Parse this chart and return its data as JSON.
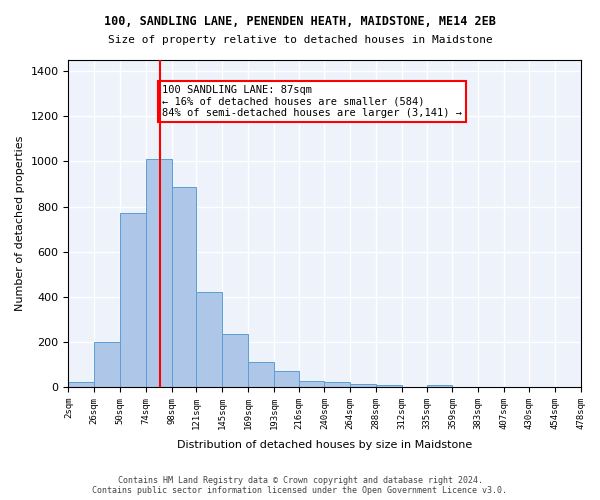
{
  "title": "100, SANDLING LANE, PENENDEN HEATH, MAIDSTONE, ME14 2EB",
  "subtitle": "Size of property relative to detached houses in Maidstone",
  "xlabel": "Distribution of detached houses by size in Maidstone",
  "ylabel": "Number of detached properties",
  "bar_color": "#aec6e8",
  "bar_edge_color": "#5a9fd4",
  "background_color": "#eef2fb",
  "grid_color": "#ffffff",
  "annotation_text": "100 SANDLING LANE: 87sqm\n← 16% of detached houses are smaller (584)\n84% of semi-detached houses are larger (3,141) →",
  "annotation_color": "red",
  "vline_x": 87,
  "vline_color": "red",
  "bin_edges": [
    2,
    26,
    50,
    74,
    98,
    121,
    145,
    169,
    193,
    216,
    240,
    264,
    288,
    312,
    335,
    359,
    383,
    407,
    430,
    454,
    478
  ],
  "bin_heights": [
    20,
    200,
    770,
    1010,
    885,
    420,
    235,
    110,
    70,
    25,
    22,
    15,
    8,
    0,
    10,
    0,
    0,
    0,
    0,
    0
  ],
  "ylim": [
    0,
    1450
  ],
  "yticks": [
    0,
    200,
    400,
    600,
    800,
    1000,
    1200,
    1400
  ],
  "footer_text": "Contains HM Land Registry data © Crown copyright and database right 2024.\nContains public sector information licensed under the Open Government Licence v3.0.",
  "tick_labels": [
    "2sqm",
    "26sqm",
    "50sqm",
    "74sqm",
    "98sqm",
    "121sqm",
    "145sqm",
    "169sqm",
    "193sqm",
    "216sqm",
    "240sqm",
    "264sqm",
    "288sqm",
    "312sqm",
    "335sqm",
    "359sqm",
    "383sqm",
    "407sqm",
    "430sqm",
    "454sqm",
    "478sqm"
  ]
}
